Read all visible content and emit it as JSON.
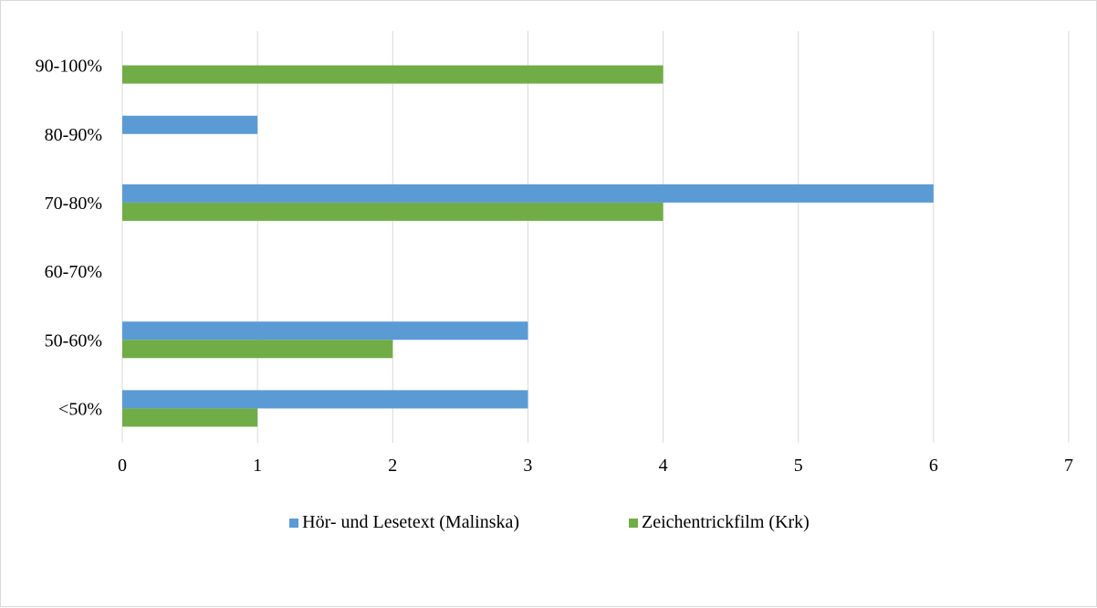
{
  "chart_data": {
    "type": "bar",
    "orientation": "horizontal",
    "categories": [
      "<50%",
      "50-60%",
      "60-70%",
      "70-80%",
      "80-90%",
      "90-100%"
    ],
    "series": [
      {
        "name": "Hör- und Lesetext (Malinska)",
        "color": "#5b9bd5",
        "values": [
          3,
          3,
          0,
          6,
          1,
          0
        ]
      },
      {
        "name": "Zeichentrickfilm (Krk)",
        "color": "#70ad47",
        "values": [
          1,
          2,
          0,
          4,
          0,
          4
        ]
      }
    ],
    "xlim": [
      0,
      7
    ],
    "xticks": [
      "0",
      "1",
      "2",
      "3",
      "4",
      "5",
      "6",
      "7"
    ],
    "grid": true,
    "legend_position": "bottom",
    "title": "",
    "xlabel": "",
    "ylabel": ""
  }
}
